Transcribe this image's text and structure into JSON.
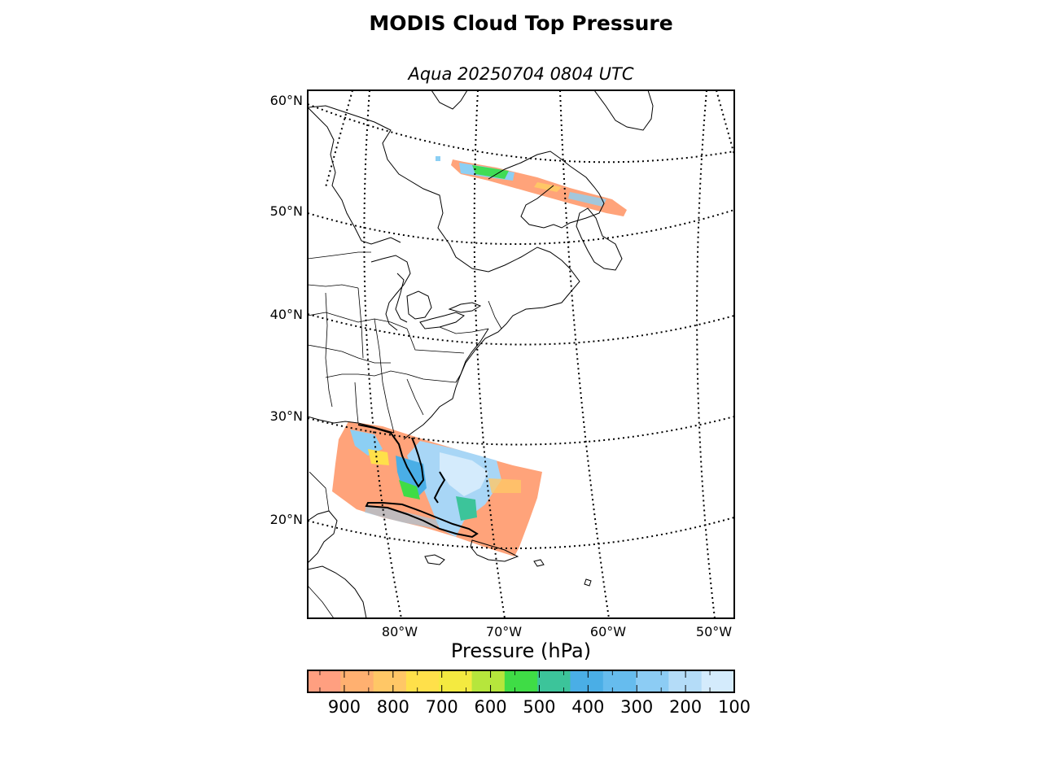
{
  "title": "MODIS Cloud Top Pressure",
  "subtitle": "Aqua 20250704 0804 UTC",
  "map": {
    "lat_labels": [
      "60°N",
      "50°N",
      "40°N",
      "30°N",
      "20°N"
    ],
    "lon_labels": [
      "80°W",
      "70°W",
      "60°W",
      "50°W"
    ]
  },
  "colorbar": {
    "label": "Pressure (hPa)",
    "ticks": [
      "900",
      "800",
      "700",
      "600",
      "500",
      "400",
      "300",
      "200",
      "100"
    ],
    "range_hpa": [
      975,
      100
    ],
    "colors": [
      "#ff9f80",
      "#ffb070",
      "#ffc766",
      "#ffe04a",
      "#f4ea40",
      "#b6e63c",
      "#3fdc46",
      "#3cc49a",
      "#4aaee6",
      "#66bcee",
      "#8cccf4",
      "#b4dcf8",
      "#d4ebfc"
    ]
  },
  "colors": {
    "coastline": "#000000",
    "grid": "#000000",
    "low_cloud": "#ffa37a",
    "mid_cloud": "#44dd55",
    "high_cloud": "#9ecff2"
  }
}
